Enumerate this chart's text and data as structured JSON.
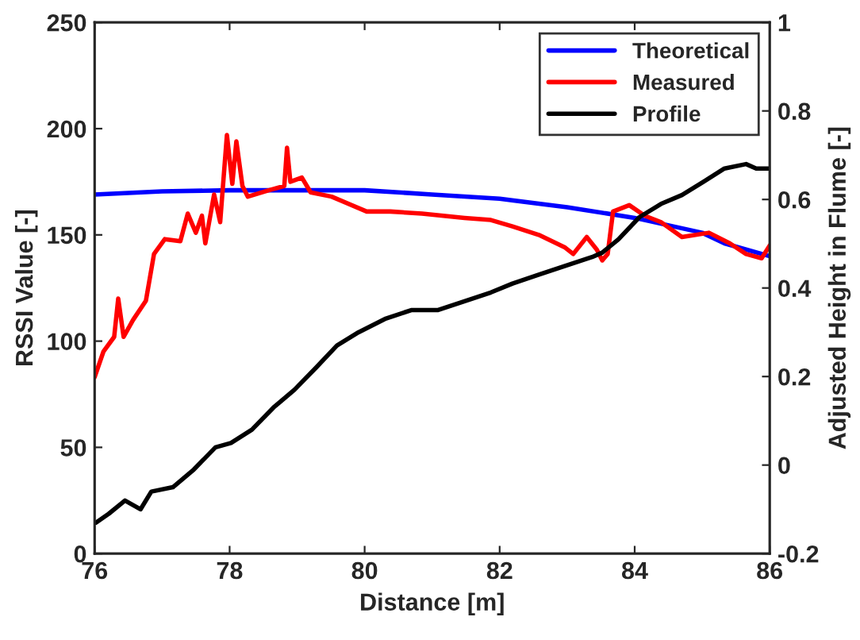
{
  "chart_data": {
    "type": "line",
    "xlabel": "Distance [m]",
    "ylabel": "RSSI Value [-]",
    "y2label": "Adjusted Height in Flume [-]",
    "xlim": [
      76,
      86
    ],
    "xticks": [
      76,
      78,
      80,
      82,
      84,
      86
    ],
    "ylim": [
      0,
      250
    ],
    "yticks": [
      0,
      50,
      100,
      150,
      200,
      250
    ],
    "y2lim": [
      -0.2,
      1
    ],
    "y2ticks": [
      -0.2,
      0,
      0.2,
      0.4,
      0.6,
      0.8,
      1
    ],
    "grid": false,
    "legend": "top right",
    "marker": "none",
    "line_style": "solid",
    "series": [
      {
        "name": "Theoretical",
        "color": "#0000ff",
        "x": [
          76,
          77,
          78,
          79,
          80,
          81,
          82,
          83,
          84,
          85,
          85.33,
          86
        ],
        "values": [
          169,
          170.5,
          171,
          171,
          171,
          169,
          167,
          163,
          158,
          151,
          146,
          140
        ]
      },
      {
        "name": "Measured",
        "color": "#ff0000",
        "x": [
          76.0,
          76.13,
          76.29,
          76.35,
          76.43,
          76.57,
          76.76,
          76.88,
          77.04,
          77.27,
          77.38,
          77.5,
          77.59,
          77.64,
          77.77,
          77.86,
          77.96,
          78.04,
          78.1,
          78.19,
          78.27,
          78.58,
          78.81,
          78.85,
          78.9,
          79.07,
          79.2,
          79.51,
          80.03,
          80.38,
          80.85,
          81.48,
          81.87,
          82.19,
          82.58,
          82.97,
          83.09,
          83.29,
          83.44,
          83.52,
          83.6,
          83.68,
          83.92,
          84.15,
          84.39,
          84.7,
          85.1,
          85.41,
          85.65,
          85.88,
          86.0
        ],
        "values": [
          83,
          95,
          102,
          120,
          102,
          110,
          119,
          141,
          148,
          147,
          160,
          151,
          159,
          146,
          169,
          156,
          197,
          174,
          194,
          173,
          168,
          171,
          173,
          191,
          175,
          177,
          170,
          168,
          161,
          161,
          160,
          158,
          157,
          154,
          150,
          144,
          141,
          149,
          143,
          138,
          141,
          161,
          164,
          159,
          156,
          149,
          151,
          146,
          141,
          139,
          145
        ]
      },
      {
        "name": "Profile",
        "color": "#000000",
        "axis": "y2",
        "x": [
          76.02,
          76.21,
          76.45,
          76.68,
          76.84,
          77.16,
          77.47,
          77.79,
          78.02,
          78.33,
          78.65,
          78.96,
          79.28,
          79.59,
          79.91,
          80.3,
          80.69,
          81.08,
          81.48,
          81.87,
          82.19,
          82.58,
          82.97,
          83.37,
          83.52,
          83.76,
          84.07,
          84.39,
          84.7,
          85.02,
          85.33,
          85.65,
          85.8,
          86.0
        ],
        "values": [
          -0.13,
          -0.11,
          -0.08,
          -0.1,
          -0.06,
          -0.05,
          -0.01,
          0.04,
          0.05,
          0.08,
          0.13,
          0.17,
          0.22,
          0.27,
          0.3,
          0.33,
          0.35,
          0.35,
          0.37,
          0.39,
          0.41,
          0.43,
          0.45,
          0.47,
          0.48,
          0.51,
          0.56,
          0.59,
          0.61,
          0.64,
          0.67,
          0.68,
          0.67,
          0.67
        ]
      }
    ]
  }
}
